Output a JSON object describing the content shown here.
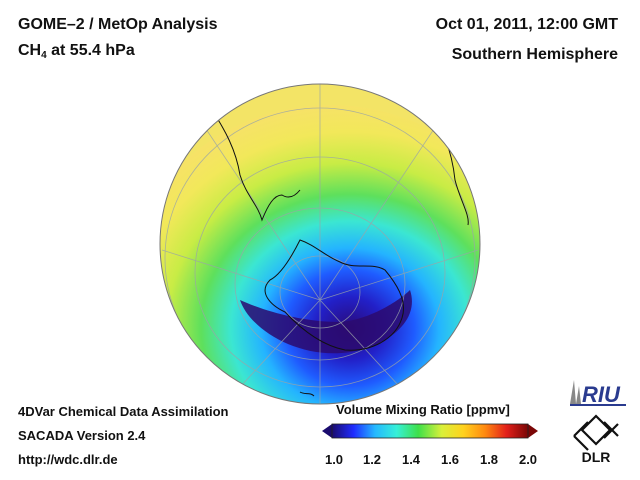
{
  "header": {
    "title_main": "GOME–2 / MetOp Analysis",
    "species": "CH",
    "species_sub": "4",
    "species_suffix": " at 55.4 hPa",
    "date": "Oct 01, 2011, 12:00 GMT",
    "region": "Southern Hemisphere"
  },
  "footer": {
    "line1": "4DVar Chemical Data Assimilation",
    "line2": "SACADA Version 2.4",
    "line3": "http://wdc.dlr.de"
  },
  "colorbar": {
    "title": "Volume Mixing Ratio [ppmv]",
    "ticks": [
      "1.0",
      "1.2",
      "1.4",
      "1.6",
      "1.8",
      "2.0"
    ],
    "min": 1.0,
    "max": 2.0,
    "colors": [
      "#1a0b6e",
      "#1f2cff",
      "#25b8ff",
      "#36f0d8",
      "#3ee04a",
      "#d9f03a",
      "#ffd21e",
      "#ff8a10",
      "#e3201a",
      "#7a0606"
    ]
  },
  "logos": {
    "riu": "RIU",
    "dlr": "DLR"
  }
}
